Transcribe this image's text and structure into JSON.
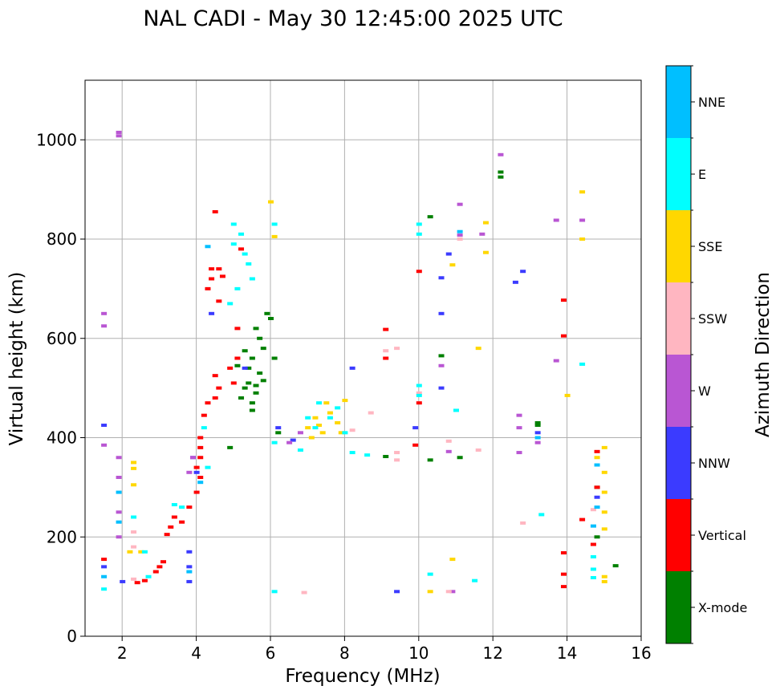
{
  "chart_data": {
    "type": "scatter",
    "title": "NAL CADI - May 30 12:45:00 2025 UTC",
    "xlabel": "Frequency (MHz)",
    "ylabel": "Virtual height (km)",
    "xlim": [
      1,
      16
    ],
    "ylim": [
      0,
      1120
    ],
    "xticks": [
      2,
      4,
      6,
      8,
      10,
      12,
      14,
      16
    ],
    "yticks": [
      0,
      200,
      400,
      600,
      800,
      1000
    ],
    "grid": true,
    "colorbar": {
      "title": "Azimuth Direction",
      "categories": [
        {
          "label": "X-mode",
          "color": "#008000"
        },
        {
          "label": "Vertical",
          "color": "#ff0000"
        },
        {
          "label": "NNW",
          "color": "#3b3bff"
        },
        {
          "label": "W",
          "color": "#b956d3"
        },
        {
          "label": "SSW",
          "color": "#ffb6c1"
        },
        {
          "label": "SSE",
          "color": "#ffd700"
        },
        {
          "label": "E",
          "color": "#00ffff"
        },
        {
          "label": "NNE",
          "color": "#00bfff"
        }
      ]
    },
    "series": [
      {
        "name": "X-mode",
        "points": [
          [
            5.5,
            470
          ],
          [
            5.6,
            490
          ],
          [
            5.4,
            510
          ],
          [
            5.7,
            530
          ],
          [
            5.5,
            560
          ],
          [
            5.8,
            580
          ],
          [
            5.3,
            500
          ],
          [
            5.6,
            620
          ],
          [
            5.9,
            650
          ],
          [
            5.2,
            480
          ],
          [
            5.4,
            540
          ],
          [
            5.7,
            600
          ],
          [
            6.0,
            640
          ],
          [
            5.5,
            455
          ],
          [
            5.3,
            575
          ],
          [
            5.8,
            515
          ],
          [
            6.1,
            560
          ],
          [
            5.1,
            545
          ],
          [
            5.6,
            505
          ],
          [
            4.9,
            380
          ],
          [
            6.2,
            410
          ],
          [
            10.3,
            845
          ],
          [
            10.6,
            565
          ],
          [
            12.2,
            925
          ],
          [
            12.2,
            935
          ],
          [
            13.2,
            425
          ],
          [
            13.2,
            430
          ],
          [
            14.8,
            300
          ],
          [
            14.8,
            200
          ],
          [
            15.3,
            142
          ],
          [
            11.1,
            360
          ],
          [
            10.3,
            355
          ],
          [
            9.1,
            362
          ]
        ]
      },
      {
        "name": "Vertical",
        "points": [
          [
            1.5,
            155
          ],
          [
            2.4,
            108
          ],
          [
            2.6,
            112
          ],
          [
            2.9,
            130
          ],
          [
            3.0,
            140
          ],
          [
            3.1,
            150
          ],
          [
            3.2,
            205
          ],
          [
            3.3,
            220
          ],
          [
            3.4,
            240
          ],
          [
            3.6,
            230
          ],
          [
            3.8,
            260
          ],
          [
            4.0,
            290
          ],
          [
            4.1,
            320
          ],
          [
            4.0,
            340
          ],
          [
            4.1,
            360
          ],
          [
            4.1,
            380
          ],
          [
            4.1,
            400
          ],
          [
            4.2,
            445
          ],
          [
            4.3,
            470
          ],
          [
            4.5,
            480
          ],
          [
            4.6,
            500
          ],
          [
            4.5,
            525
          ],
          [
            4.9,
            540
          ],
          [
            5.0,
            510
          ],
          [
            5.1,
            560
          ],
          [
            4.4,
            740
          ],
          [
            4.4,
            720
          ],
          [
            4.3,
            700
          ],
          [
            4.6,
            740
          ],
          [
            4.7,
            725
          ],
          [
            4.5,
            855
          ],
          [
            4.6,
            675
          ],
          [
            5.2,
            780
          ],
          [
            5.1,
            620
          ],
          [
            9.1,
            618
          ],
          [
            9.1,
            560
          ],
          [
            10.0,
            735
          ],
          [
            10.0,
            470
          ],
          [
            9.9,
            385
          ],
          [
            13.9,
            677
          ],
          [
            13.9,
            605
          ],
          [
            14.4,
            235
          ],
          [
            14.8,
            372
          ],
          [
            14.8,
            300
          ],
          [
            14.7,
            185
          ],
          [
            13.9,
            168
          ],
          [
            13.9,
            125
          ],
          [
            13.9,
            100
          ]
        ]
      },
      {
        "name": "NNW",
        "points": [
          [
            1.5,
            140
          ],
          [
            1.5,
            425
          ],
          [
            2.0,
            110
          ],
          [
            3.8,
            170
          ],
          [
            3.8,
            140
          ],
          [
            3.8,
            110
          ],
          [
            3.9,
            360
          ],
          [
            4.0,
            330
          ],
          [
            4.4,
            650
          ],
          [
            5.3,
            540
          ],
          [
            6.2,
            420
          ],
          [
            6.6,
            395
          ],
          [
            8.2,
            540
          ],
          [
            9.4,
            90
          ],
          [
            9.9,
            420
          ],
          [
            10.6,
            650
          ],
          [
            10.6,
            500
          ],
          [
            10.6,
            722
          ],
          [
            10.8,
            770
          ],
          [
            12.6,
            713
          ],
          [
            12.8,
            735
          ],
          [
            13.2,
            410
          ],
          [
            14.8,
            280
          ]
        ]
      },
      {
        "name": "W",
        "points": [
          [
            1.5,
            650
          ],
          [
            1.5,
            625
          ],
          [
            1.5,
            385
          ],
          [
            1.9,
            1015
          ],
          [
            1.9,
            1008
          ],
          [
            1.9,
            360
          ],
          [
            1.9,
            320
          ],
          [
            1.9,
            250
          ],
          [
            1.9,
            200
          ],
          [
            3.8,
            330
          ],
          [
            3.9,
            360
          ],
          [
            6.5,
            390
          ],
          [
            10.6,
            545
          ],
          [
            10.8,
            372
          ],
          [
            11.1,
            870
          ],
          [
            11.7,
            810
          ],
          [
            12.2,
            970
          ],
          [
            12.7,
            445
          ],
          [
            12.7,
            420
          ],
          [
            12.7,
            370
          ],
          [
            13.2,
            390
          ],
          [
            13.7,
            838
          ],
          [
            13.7,
            555
          ],
          [
            14.4,
            838
          ],
          [
            10.9,
            90
          ],
          [
            11.1,
            808
          ],
          [
            6.8,
            410
          ]
        ]
      },
      {
        "name": "SSW",
        "points": [
          [
            2.3,
            210
          ],
          [
            2.3,
            180
          ],
          [
            2.3,
            115
          ],
          [
            6.9,
            88
          ],
          [
            8.2,
            415
          ],
          [
            8.7,
            450
          ],
          [
            9.4,
            580
          ],
          [
            9.4,
            370
          ],
          [
            9.4,
            355
          ],
          [
            9.1,
            575
          ],
          [
            10.0,
            490
          ],
          [
            10.8,
            90
          ],
          [
            11.6,
            375
          ],
          [
            12.8,
            228
          ],
          [
            14.7,
            255
          ],
          [
            11.1,
            800
          ],
          [
            10.8,
            393
          ]
        ]
      },
      {
        "name": "SSE",
        "points": [
          [
            2.2,
            170
          ],
          [
            2.3,
            350
          ],
          [
            2.3,
            338
          ],
          [
            2.3,
            305
          ],
          [
            2.5,
            170
          ],
          [
            6.0,
            875
          ],
          [
            6.1,
            805
          ],
          [
            7.0,
            420
          ],
          [
            7.2,
            440
          ],
          [
            7.4,
            410
          ],
          [
            7.6,
            450
          ],
          [
            7.8,
            430
          ],
          [
            7.1,
            400
          ],
          [
            7.5,
            470
          ],
          [
            7.9,
            410
          ],
          [
            8.0,
            475
          ],
          [
            7.3,
            425
          ],
          [
            10.3,
            90
          ],
          [
            10.9,
            155
          ],
          [
            10.9,
            748
          ],
          [
            11.6,
            580
          ],
          [
            11.8,
            773
          ],
          [
            11.8,
            833
          ],
          [
            14.0,
            485
          ],
          [
            14.4,
            895
          ],
          [
            14.4,
            800
          ],
          [
            15.0,
            120
          ],
          [
            15.0,
            110
          ],
          [
            15.0,
            380
          ],
          [
            15.0,
            330
          ],
          [
            15.0,
            290
          ],
          [
            15.0,
            250
          ],
          [
            15.0,
            216
          ],
          [
            14.8,
            360
          ]
        ]
      },
      {
        "name": "E",
        "points": [
          [
            1.5,
            95
          ],
          [
            2.6,
            170
          ],
          [
            2.3,
            240
          ],
          [
            3.4,
            265
          ],
          [
            3.6,
            260
          ],
          [
            4.3,
            340
          ],
          [
            4.2,
            420
          ],
          [
            5.0,
            830
          ],
          [
            5.2,
            810
          ],
          [
            5.3,
            770
          ],
          [
            5.4,
            750
          ],
          [
            5.5,
            720
          ],
          [
            5.0,
            790
          ],
          [
            5.1,
            700
          ],
          [
            4.9,
            670
          ],
          [
            6.1,
            830
          ],
          [
            6.1,
            390
          ],
          [
            6.8,
            375
          ],
          [
            7.0,
            440
          ],
          [
            7.3,
            470
          ],
          [
            7.6,
            440
          ],
          [
            7.2,
            420
          ],
          [
            7.8,
            460
          ],
          [
            8.0,
            410
          ],
          [
            8.2,
            370
          ],
          [
            8.6,
            365
          ],
          [
            10.0,
            810
          ],
          [
            10.0,
            830
          ],
          [
            10.0,
            505
          ],
          [
            10.0,
            485
          ],
          [
            10.3,
            125
          ],
          [
            11.0,
            455
          ],
          [
            11.5,
            112
          ],
          [
            13.3,
            245
          ],
          [
            14.4,
            548
          ],
          [
            14.7,
            160
          ],
          [
            14.7,
            135
          ],
          [
            14.7,
            118
          ],
          [
            6.1,
            90
          ],
          [
            2.7,
            120
          ]
        ]
      },
      {
        "name": "NNE",
        "points": [
          [
            1.5,
            120
          ],
          [
            1.9,
            290
          ],
          [
            1.9,
            230
          ],
          [
            3.8,
            130
          ],
          [
            4.1,
            310
          ],
          [
            4.3,
            785
          ],
          [
            11.1,
            815
          ],
          [
            13.2,
            400
          ],
          [
            14.8,
            345
          ],
          [
            14.8,
            260
          ],
          [
            14.7,
            222
          ]
        ]
      }
    ]
  }
}
